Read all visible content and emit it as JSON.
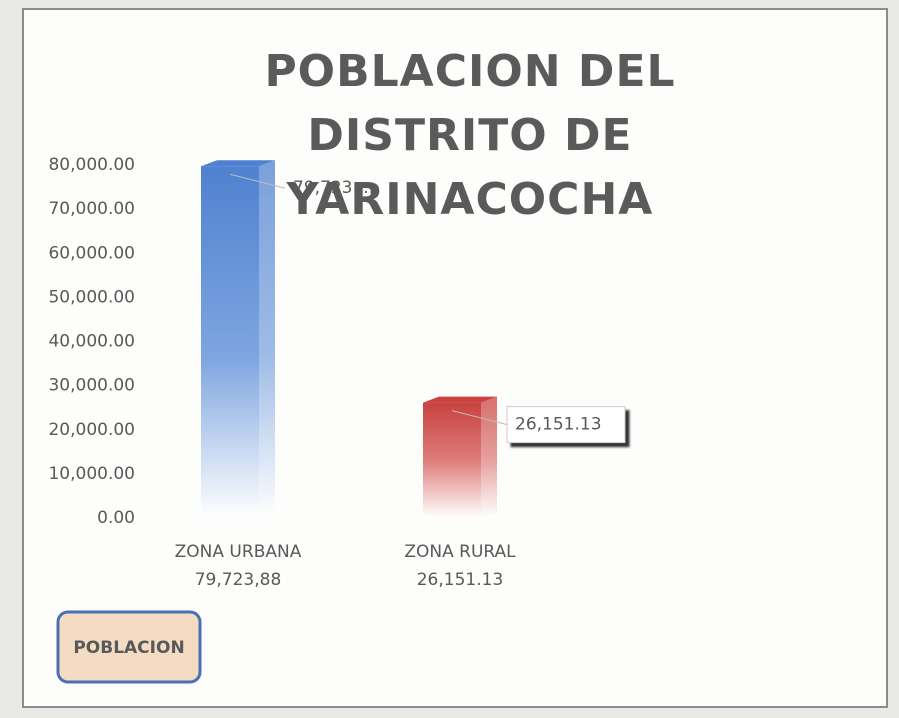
{
  "chart_data": {
    "type": "bar",
    "title": "POBLACION DEL DISTRITO DE YARINACOCHA",
    "categories": [
      "ZONA URBANA",
      "ZONA RURAL"
    ],
    "category_sublabels": [
      "79,723,88",
      "26,151.13"
    ],
    "series": [
      {
        "name": "POBLACION",
        "colors": [
          "#4f81d0",
          "#c9423f"
        ],
        "values": [
          79723.88,
          26151.13
        ],
        "value_labels": [
          "79,723....",
          "26,151.13"
        ]
      }
    ],
    "ylim": [
      0,
      80000
    ],
    "yticks": [
      {
        "value": 0,
        "label": "0.00"
      },
      {
        "value": 10000,
        "label": "10,000.00"
      },
      {
        "value": 20000,
        "label": "20,000.00"
      },
      {
        "value": 30000,
        "label": "30,000.00"
      },
      {
        "value": 40000,
        "label": "40,000.00"
      },
      {
        "value": 50000,
        "label": "50,000.00"
      },
      {
        "value": 60000,
        "label": "60,000.00"
      },
      {
        "value": 70000,
        "label": "70,000.00"
      },
      {
        "value": 80000,
        "label": "80,000.00"
      }
    ],
    "grid": false,
    "legend": "bottom-left"
  }
}
